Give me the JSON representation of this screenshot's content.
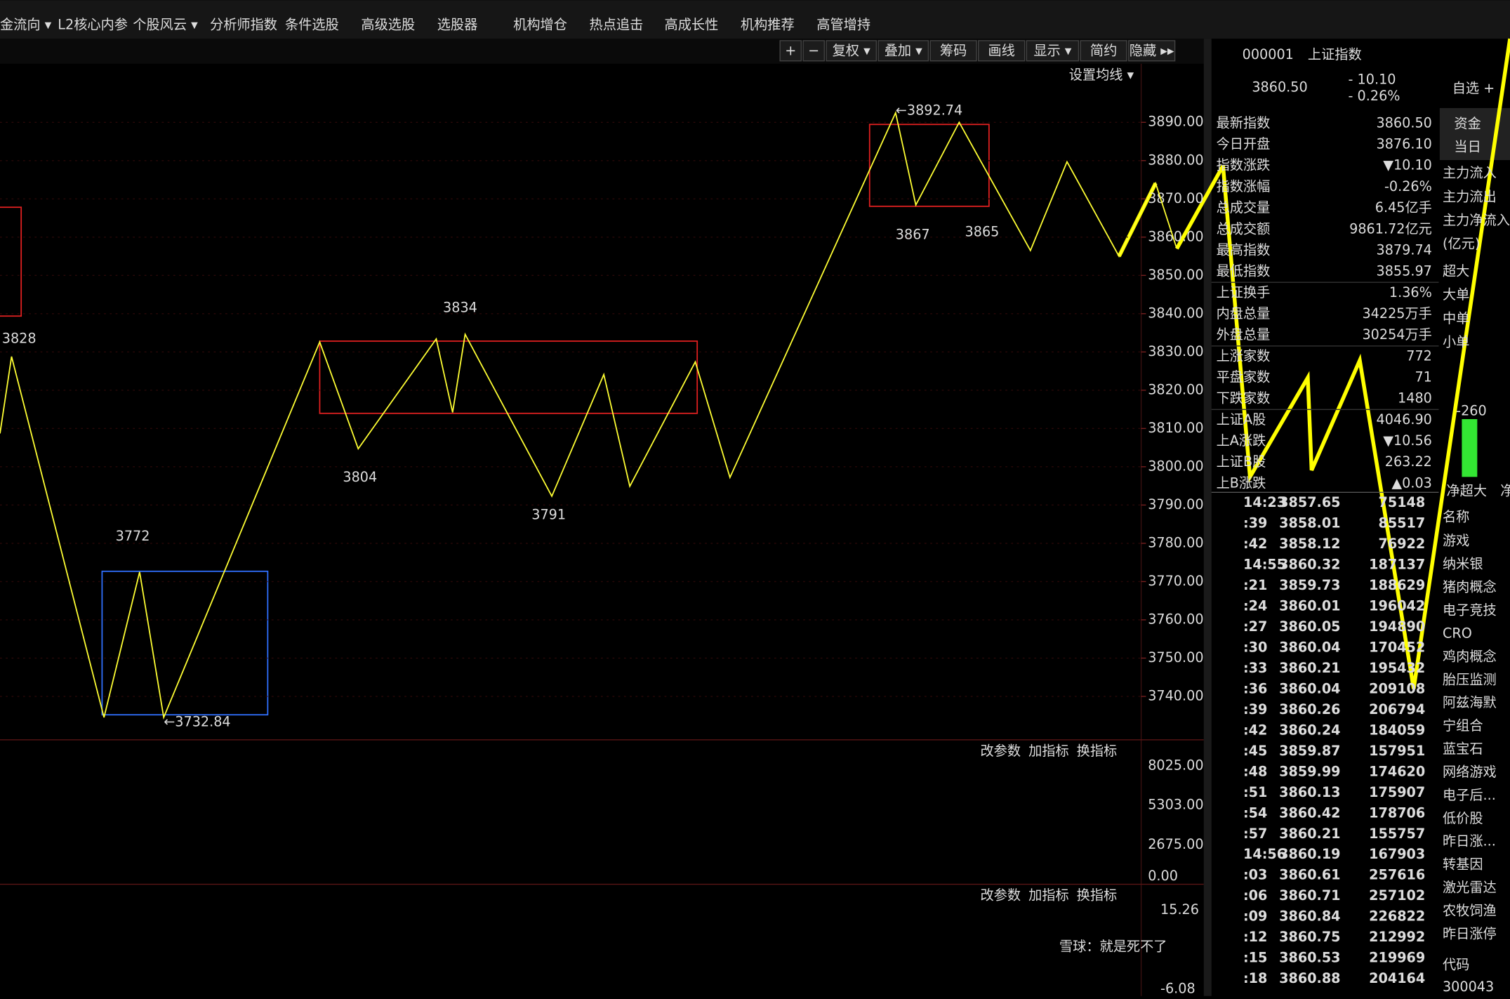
{
  "menu": [
    "金流向 ▾",
    "L2核心内参",
    "个股风云 ▾",
    "分析师指数",
    "条件选股",
    "高级选股",
    "选股器",
    "机构增仓",
    "热点追击",
    "高成长性",
    "机构推荐",
    "高管增持"
  ],
  "toolbar": [
    "+",
    "−",
    "复权 ▾",
    "叠加 ▾",
    "筹码",
    "画线",
    "显示 ▾",
    "简约",
    "隐藏 ▸▸"
  ],
  "ma_setting": "设置均线 ▾",
  "price_chart": {
    "ylim": [
      3729.4,
      3904.3
    ],
    "yticks": [
      {
        "value": 3740,
        "label": "3740.00"
      },
      {
        "value": 3750,
        "label": "3750.00"
      },
      {
        "value": 3760,
        "label": "3760.00"
      },
      {
        "value": 3770,
        "label": "3770.00"
      },
      {
        "value": 3780,
        "label": "3780.00"
      },
      {
        "value": 3790,
        "label": "3790.00"
      },
      {
        "value": 3800,
        "label": "3800.00"
      },
      {
        "value": 3810,
        "label": "3810.00"
      },
      {
        "value": 3820,
        "label": "3820.00"
      },
      {
        "value": 3830,
        "label": "3830.00"
      },
      {
        "value": 3840,
        "label": "3840.00"
      },
      {
        "value": 3850,
        "label": "3850.00"
      },
      {
        "value": 3860,
        "label": "3860.00"
      },
      {
        "value": 3870,
        "label": "3870.00"
      },
      {
        "value": 3880,
        "label": "3880.00"
      },
      {
        "value": 3890,
        "label": "3890.00"
      }
    ],
    "zigzag": [
      3808.7,
      3828.8,
      3734.5,
      3772.5,
      3734.5,
      3832.6,
      3804.7,
      3833.4,
      3814.2,
      3834.6,
      3792.3,
      3824.1,
      3794.9,
      3827.4,
      3797.2,
      3892.5,
      3868.4,
      3890,
      3856.5,
      3879.7,
      3855,
      3874.1,
      3857
    ],
    "color": "#ffff33",
    "annotations": [
      "3828",
      "3772",
      "3834",
      "3804",
      "3791",
      "3867",
      "3865"
    ],
    "high_label": "←3892.74",
    "low_label": "←3732.84"
  },
  "indicator_buttons": [
    "改参数",
    "加指标",
    "换指标"
  ],
  "volume_ticks": [
    "8025.00",
    "5303.00",
    "2675.00",
    "0.00"
  ],
  "macd_ticks": [
    "15.26",
    "-6.08"
  ],
  "quote": {
    "code": "000001",
    "name": "上证指数",
    "price": "3860.50",
    "change": "- 10.10",
    "pct": "- 0.26%",
    "watch": "自选 +",
    "rows": [
      {
        "label": "最新指数",
        "value": "3860.50",
        "color": "#33e633"
      },
      {
        "label": "今日开盘",
        "value": "3876.10",
        "color": "#ff4444"
      },
      {
        "label": "指数涨跌",
        "value": "▼10.10",
        "color": "#33e633"
      },
      {
        "label": "指数涨幅",
        "value": "-0.26%",
        "color": "#33e633"
      },
      {
        "label": "总成交量",
        "value": "6.45亿手",
        "color": "#ffffff"
      },
      {
        "label": "总成交额",
        "value": "9861.72亿元",
        "color": "#33ddee"
      },
      {
        "label": "最高指数",
        "value": "3879.74",
        "color": "#ff4444"
      },
      {
        "label": "最低指数",
        "value": "3855.97",
        "color": "#33e633"
      },
      {
        "label": "上证换手",
        "value": "1.36%",
        "color": "#ffffff"
      },
      {
        "label": "内盘总量",
        "value": "34225万手",
        "color": "#33e633"
      },
      {
        "label": "外盘总量",
        "value": "30254万手",
        "color": "#ff4444"
      },
      {
        "label": "上涨家数",
        "value": "772",
        "color": "#ff4444"
      },
      {
        "label": "平盘家数",
        "value": "71",
        "color": "#ffffff"
      },
      {
        "label": "下跌家数",
        "value": "1480",
        "color": "#33e633"
      },
      {
        "label": "上证A股",
        "value": "4046.90",
        "color": "#33e633"
      },
      {
        "label": "上A涨跌",
        "value": "▼10.56",
        "color": "#33e633"
      },
      {
        "label": "上证B股",
        "value": "263.22",
        "color": "#ff4444"
      },
      {
        "label": "上B涨跌",
        "value": "▲0.03",
        "color": "#ff4444"
      }
    ],
    "ticks": [
      [
        "14:23",
        "3857.65",
        "75148"
      ],
      [
        ":39",
        "3858.01",
        "85517"
      ],
      [
        ":42",
        "3858.12",
        "76922"
      ],
      [
        "14:55",
        "3860.32",
        "187137"
      ],
      [
        ":21",
        "3859.73",
        "188629"
      ],
      [
        ":24",
        "3860.01",
        "196042"
      ],
      [
        ":27",
        "3860.05",
        "194890"
      ],
      [
        ":30",
        "3860.04",
        "170452"
      ],
      [
        ":33",
        "3860.21",
        "195432"
      ],
      [
        ":36",
        "3860.04",
        "209108"
      ],
      [
        ":39",
        "3860.26",
        "206794"
      ],
      [
        ":42",
        "3860.24",
        "184059"
      ],
      [
        ":45",
        "3859.87",
        "157951"
      ],
      [
        ":48",
        "3859.99",
        "174620"
      ],
      [
        ":51",
        "3860.13",
        "175907"
      ],
      [
        ":54",
        "3860.42",
        "178706"
      ],
      [
        ":57",
        "3860.21",
        "155757"
      ],
      [
        "14:56",
        "3860.19",
        "167903"
      ],
      [
        ":03",
        "3860.61",
        "257616"
      ],
      [
        ":06",
        "3860.71",
        "257102"
      ],
      [
        ":09",
        "3860.84",
        "226822"
      ],
      [
        ":12",
        "3860.75",
        "212992"
      ],
      [
        ":15",
        "3860.53",
        "219969"
      ],
      [
        ":18",
        "3860.88",
        "204164"
      ]
    ]
  },
  "fund": {
    "tabs": [
      "资金",
      "当日"
    ],
    "labels": [
      "主力流入",
      "主力流出",
      "主力净流入",
      "(亿元)",
      "超大",
      "大单",
      "中单",
      "小单"
    ],
    "bar_label": "-260",
    "bar_caption": "净超大",
    "col2": "净",
    "header": "名称",
    "sectors": [
      "游戏",
      "纳米银",
      "猪肉概念",
      "电子竞技",
      "CRO",
      "鸡肉概念",
      "胎压监测",
      "阿兹海默",
      "宁组合",
      "蓝宝石",
      "网络游戏",
      "电子后...",
      "低价股",
      "昨日涨...",
      "转基因",
      "激光雷达",
      "农牧饲渔",
      "昨日涨停"
    ],
    "code_header": "代码",
    "code": "300043"
  },
  "watermark": "雪球：就是死不了"
}
